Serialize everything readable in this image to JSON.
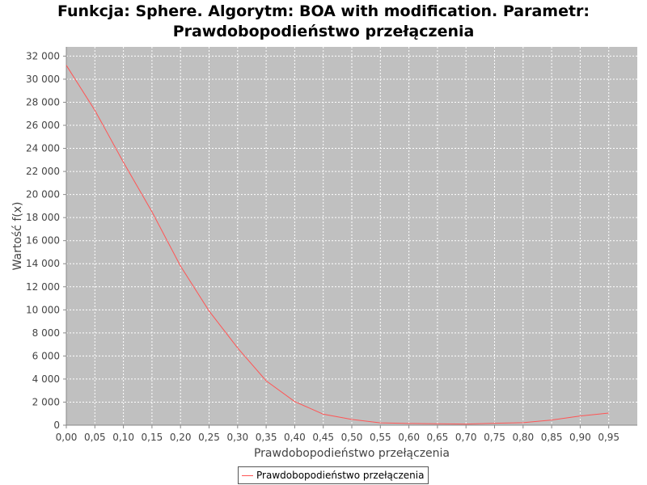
{
  "chart_data": {
    "type": "line",
    "title": "Funkcja: Sphere. Algorytm: BOA with modification. Parametr: Prawdobopodieństwo przełączenia",
    "title_lines": [
      "Funkcja: Sphere. Algorytm: BOA with modification. Parametr:",
      "Prawdobopodieństwo przełączenia"
    ],
    "xlabel": "Prawdobopodieństwo przełączenia",
    "ylabel": "Wartość f(x)",
    "xlim": [
      0,
      1.0
    ],
    "ylim": [
      0,
      32800
    ],
    "x_ticks": [
      "0,00",
      "0,05",
      "0,10",
      "0,15",
      "0,20",
      "0,25",
      "0,30",
      "0,35",
      "0,40",
      "0,45",
      "0,50",
      "0,55",
      "0,60",
      "0,65",
      "0,70",
      "0,75",
      "0,80",
      "0,85",
      "0,90",
      "0,95"
    ],
    "y_ticks": [
      "0",
      "2 000",
      "4 000",
      "6 000",
      "8 000",
      "10 000",
      "12 000",
      "14 000",
      "16 000",
      "18 000",
      "20 000",
      "22 000",
      "24 000",
      "26 000",
      "28 000",
      "30 000",
      "32 000"
    ],
    "grid": true,
    "legend_position": "bottom-center",
    "colors": {
      "plot_background": "#c0c0c0",
      "gridline": "#ffffff",
      "series": "#ff5555"
    },
    "x": [
      0.0,
      0.05,
      0.1,
      0.15,
      0.2,
      0.25,
      0.3,
      0.35,
      0.4,
      0.45,
      0.5,
      0.55,
      0.6,
      0.65,
      0.7,
      0.75,
      0.8,
      0.85,
      0.9,
      0.95
    ],
    "series": [
      {
        "name": "Prawdobopodieństwo przełączenia",
        "values": [
          31200,
          27300,
          22800,
          18500,
          13800,
          9900,
          6700,
          3850,
          2050,
          950,
          500,
          200,
          150,
          120,
          100,
          170,
          220,
          450,
          800,
          1050
        ]
      }
    ]
  }
}
